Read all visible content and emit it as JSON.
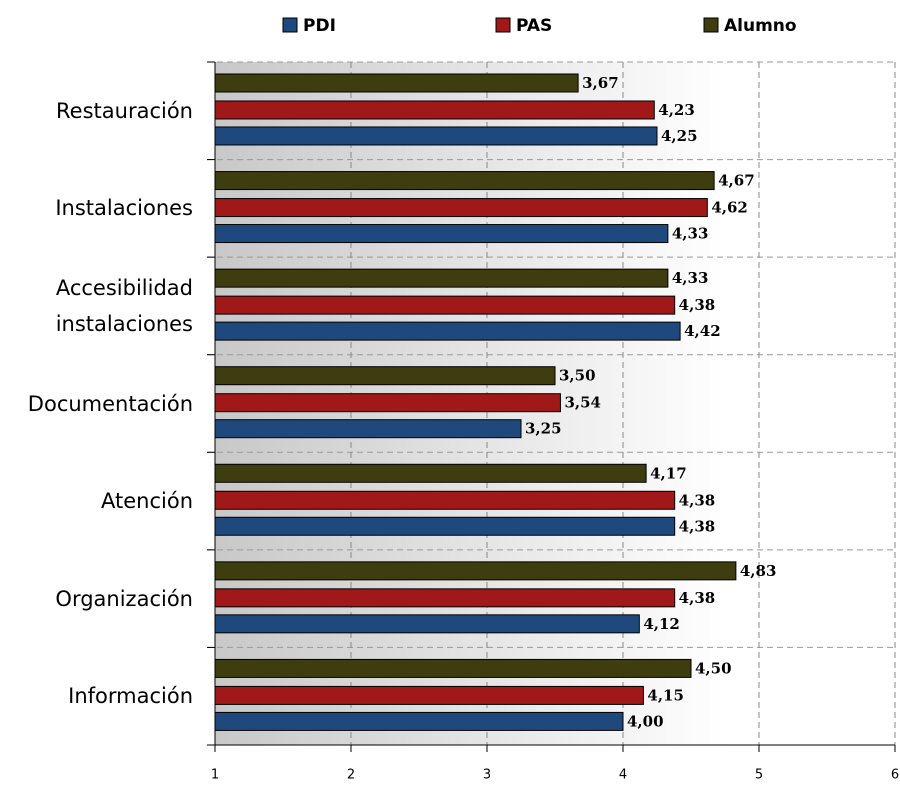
{
  "chart_data": {
    "type": "hbar",
    "categories": [
      "Restauración",
      "Instalaciones",
      "Accesibilidad instalaciones",
      "Documentación",
      "Atención",
      "Organización",
      "Información"
    ],
    "series": [
      {
        "name": "PDI",
        "color": "#1f497d",
        "values": [
          4.25,
          4.33,
          4.42,
          3.25,
          4.38,
          4.12,
          4.0
        ],
        "value_labels": [
          "4,25",
          "4,33",
          "4,42",
          "3,25",
          "4,38",
          "4,12",
          "4,00"
        ]
      },
      {
        "name": "PAS",
        "color": "#a01818",
        "values": [
          4.23,
          4.62,
          4.38,
          3.54,
          4.38,
          4.38,
          4.15
        ],
        "value_labels": [
          "4,23",
          "4,62",
          "4,38",
          "3,54",
          "4,38",
          "4,38",
          "4,15"
        ]
      },
      {
        "name": "Alumno",
        "color": "#3d3d10",
        "values": [
          3.67,
          4.67,
          4.33,
          3.5,
          4.17,
          4.83,
          4.5
        ],
        "value_labels": [
          "3,67",
          "4,67",
          "4,33",
          "3,50",
          "4,17",
          "4,83",
          "4,50"
        ]
      }
    ],
    "xlim": [
      1,
      6
    ],
    "xticks": [
      1,
      2,
      3,
      4,
      5,
      6
    ],
    "grid": true,
    "legend": "top"
  }
}
